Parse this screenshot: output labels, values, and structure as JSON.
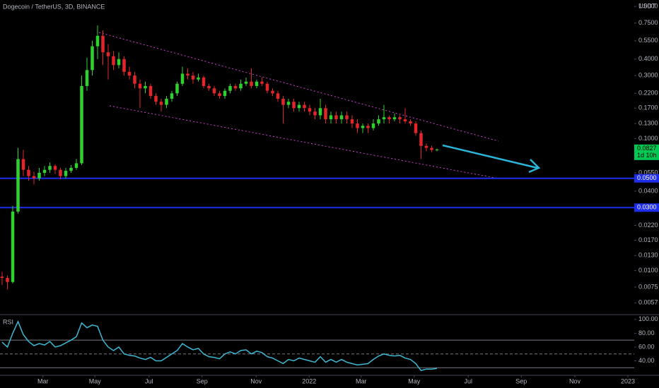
{
  "chart_data": [
    {
      "type": "candlestick",
      "title": "Dogecoin / TetherUS, 3D, BINANCE",
      "y_unit": "USDT",
      "log_scale": true,
      "up_color": "#2ed12e",
      "down_color": "#e3262c",
      "candles": [
        [
          0.009,
          0.0098,
          0.0078,
          0.0088
        ],
        [
          0.0088,
          0.0092,
          0.0072,
          0.0082
        ],
        [
          0.0082,
          0.031,
          0.008,
          0.028
        ],
        [
          0.028,
          0.085,
          0.027,
          0.07
        ],
        [
          0.07,
          0.082,
          0.052,
          0.058
        ],
        [
          0.058,
          0.062,
          0.048,
          0.052
        ],
        [
          0.052,
          0.056,
          0.045,
          0.05
        ],
        [
          0.05,
          0.06,
          0.048,
          0.055
        ],
        [
          0.055,
          0.062,
          0.052,
          0.058
        ],
        [
          0.058,
          0.066,
          0.055,
          0.062
        ],
        [
          0.062,
          0.064,
          0.054,
          0.058
        ],
        [
          0.058,
          0.06,
          0.049,
          0.052
        ],
        [
          0.052,
          0.06,
          0.05,
          0.057
        ],
        [
          0.057,
          0.063,
          0.055,
          0.06
        ],
        [
          0.06,
          0.07,
          0.058,
          0.065
        ],
        [
          0.065,
          0.3,
          0.063,
          0.25
        ],
        [
          0.25,
          0.41,
          0.23,
          0.33
        ],
        [
          0.33,
          0.55,
          0.3,
          0.5
        ],
        [
          0.5,
          0.72,
          0.4,
          0.6
        ],
        [
          0.6,
          0.66,
          0.36,
          0.45
        ],
        [
          0.45,
          0.52,
          0.28,
          0.42
        ],
        [
          0.42,
          0.46,
          0.33,
          0.36
        ],
        [
          0.36,
          0.45,
          0.34,
          0.4
        ],
        [
          0.4,
          0.42,
          0.3,
          0.32
        ],
        [
          0.32,
          0.35,
          0.28,
          0.3
        ],
        [
          0.3,
          0.32,
          0.24,
          0.26
        ],
        [
          0.26,
          0.28,
          0.17,
          0.24
        ],
        [
          0.24,
          0.27,
          0.22,
          0.25
        ],
        [
          0.25,
          0.26,
          0.2,
          0.21
        ],
        [
          0.21,
          0.22,
          0.18,
          0.19
        ],
        [
          0.19,
          0.2,
          0.16,
          0.18
        ],
        [
          0.18,
          0.21,
          0.17,
          0.2
        ],
        [
          0.2,
          0.23,
          0.19,
          0.22
        ],
        [
          0.22,
          0.27,
          0.21,
          0.26
        ],
        [
          0.26,
          0.35,
          0.25,
          0.31
        ],
        [
          0.31,
          0.34,
          0.28,
          0.3
        ],
        [
          0.3,
          0.32,
          0.26,
          0.28
        ],
        [
          0.28,
          0.31,
          0.27,
          0.29
        ],
        [
          0.29,
          0.3,
          0.24,
          0.25
        ],
        [
          0.25,
          0.26,
          0.23,
          0.24
        ],
        [
          0.24,
          0.25,
          0.21,
          0.22
        ],
        [
          0.22,
          0.23,
          0.2,
          0.21
        ],
        [
          0.21,
          0.24,
          0.2,
          0.23
        ],
        [
          0.23,
          0.26,
          0.22,
          0.25
        ],
        [
          0.25,
          0.26,
          0.23,
          0.24
        ],
        [
          0.24,
          0.28,
          0.23,
          0.26
        ],
        [
          0.26,
          0.29,
          0.25,
          0.27
        ],
        [
          0.27,
          0.34,
          0.24,
          0.25
        ],
        [
          0.25,
          0.28,
          0.24,
          0.27
        ],
        [
          0.27,
          0.29,
          0.25,
          0.26
        ],
        [
          0.26,
          0.27,
          0.22,
          0.23
        ],
        [
          0.23,
          0.24,
          0.21,
          0.22
        ],
        [
          0.22,
          0.23,
          0.19,
          0.2
        ],
        [
          0.2,
          0.21,
          0.13,
          0.18
        ],
        [
          0.18,
          0.2,
          0.17,
          0.19
        ],
        [
          0.19,
          0.2,
          0.16,
          0.17
        ],
        [
          0.17,
          0.19,
          0.16,
          0.18
        ],
        [
          0.18,
          0.19,
          0.16,
          0.17
        ],
        [
          0.17,
          0.18,
          0.15,
          0.16
        ],
        [
          0.16,
          0.17,
          0.14,
          0.15
        ],
        [
          0.15,
          0.2,
          0.14,
          0.17
        ],
        [
          0.17,
          0.18,
          0.13,
          0.14
        ],
        [
          0.14,
          0.16,
          0.13,
          0.15
        ],
        [
          0.15,
          0.16,
          0.13,
          0.14
        ],
        [
          0.14,
          0.16,
          0.13,
          0.15
        ],
        [
          0.15,
          0.16,
          0.13,
          0.14
        ],
        [
          0.14,
          0.15,
          0.12,
          0.13
        ],
        [
          0.13,
          0.14,
          0.11,
          0.12
        ],
        [
          0.12,
          0.13,
          0.11,
          0.125
        ],
        [
          0.125,
          0.13,
          0.11,
          0.12
        ],
        [
          0.12,
          0.14,
          0.115,
          0.13
        ],
        [
          0.13,
          0.15,
          0.125,
          0.14
        ],
        [
          0.14,
          0.18,
          0.13,
          0.145
        ],
        [
          0.145,
          0.15,
          0.13,
          0.14
        ],
        [
          0.14,
          0.155,
          0.135,
          0.145
        ],
        [
          0.145,
          0.15,
          0.13,
          0.14
        ],
        [
          0.14,
          0.17,
          0.13,
          0.135
        ],
        [
          0.135,
          0.14,
          0.125,
          0.13
        ],
        [
          0.13,
          0.135,
          0.105,
          0.11
        ],
        [
          0.11,
          0.115,
          0.07,
          0.088
        ],
        [
          0.088,
          0.092,
          0.08,
          0.085
        ],
        [
          0.085,
          0.088,
          0.079,
          0.082
        ],
        [
          0.082,
          0.084,
          0.08,
          0.0827
        ]
      ],
      "xlim": [
        -0.4,
        119.2
      ],
      "xticks": [
        {
          "value": 7.7,
          "label": "Mar"
        },
        {
          "value": 17.5,
          "label": "May"
        },
        {
          "value": 27.7,
          "label": "Jul"
        },
        {
          "value": 37.7,
          "label": "Sep"
        },
        {
          "value": 47.9,
          "label": "Nov"
        },
        {
          "value": 57.9,
          "label": "2022"
        },
        {
          "value": 67.7,
          "label": "Mar"
        },
        {
          "value": 77.7,
          "label": "May"
        },
        {
          "value": 87.9,
          "label": "Jul"
        },
        {
          "value": 97.9,
          "label": "Sep"
        },
        {
          "value": 108,
          "label": "Nov"
        },
        {
          "value": 118,
          "label": "2023"
        }
      ],
      "ylim": [
        0.0047,
        1.12
      ],
      "yticks": [
        {
          "value": 1.0,
          "label": "1.0000"
        },
        {
          "value": 0.75,
          "label": "0.7500"
        },
        {
          "value": 0.55,
          "label": "0.5500"
        },
        {
          "value": 0.4,
          "label": "0.4000"
        },
        {
          "value": 0.3,
          "label": "0.3000"
        },
        {
          "value": 0.22,
          "label": "0.2200"
        },
        {
          "value": 0.17,
          "label": "0.1700"
        },
        {
          "value": 0.13,
          "label": "0.1300"
        },
        {
          "value": 0.1,
          "label": "0.1000"
        },
        {
          "value": 0.055,
          "label": "0.0550"
        },
        {
          "value": 0.04,
          "label": "0.0400"
        },
        {
          "value": 0.022,
          "label": "0.0220"
        },
        {
          "value": 0.017,
          "label": "0.0170"
        },
        {
          "value": 0.013,
          "label": "0.0130"
        },
        {
          "value": 0.01,
          "label": "0.0100"
        },
        {
          "value": 0.0075,
          "label": "0.0075"
        },
        {
          "value": 0.0057,
          "label": "0.0057"
        }
      ],
      "hlines": [
        {
          "value": 0.05,
          "label": "0.0500"
        },
        {
          "value": 0.03,
          "label": "0.0300"
        }
      ],
      "hline_color": "#1e2ee8",
      "last_price": {
        "value": 0.0827,
        "label": "0.0827"
      },
      "countdown": "1d 10h",
      "last_color": "#00c853"
    },
    {
      "type": "line",
      "title": "RSI",
      "color": "#3fb8d4",
      "xlim": [
        -0.4,
        119.2
      ],
      "values": [
        67,
        60,
        80,
        97,
        78,
        68,
        62,
        65,
        63,
        68,
        60,
        62,
        66,
        70,
        75,
        95,
        88,
        92,
        90,
        70,
        60,
        55,
        60,
        50,
        48,
        47,
        44,
        42,
        45,
        40,
        40,
        45,
        50,
        55,
        65,
        60,
        56,
        58,
        50,
        46,
        45,
        43,
        50,
        53,
        50,
        55,
        56,
        50,
        54,
        52,
        46,
        44,
        40,
        36,
        42,
        40,
        44,
        42,
        40,
        38,
        46,
        38,
        42,
        38,
        42,
        38,
        36,
        34,
        35,
        36,
        42,
        47,
        50,
        48,
        47,
        48,
        44,
        42,
        36,
        26,
        28,
        28,
        29
      ],
      "ylim": [
        19,
        106
      ],
      "yticks": [
        {
          "value": 100,
          "label": "100.00"
        },
        {
          "value": 80,
          "label": "80.00"
        },
        {
          "value": 60,
          "label": "60.00"
        },
        {
          "value": 40,
          "label": "40.00"
        }
      ],
      "levels": [
        70,
        50,
        30
      ]
    }
  ]
}
